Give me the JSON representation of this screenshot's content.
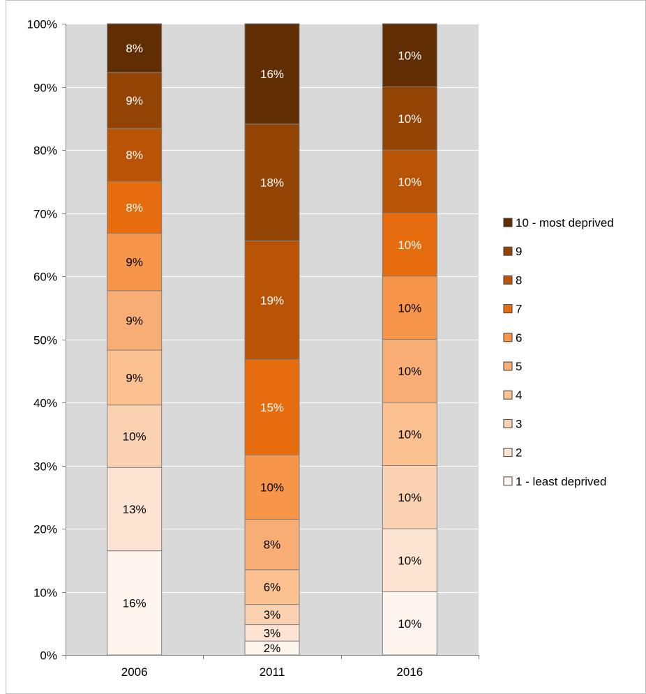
{
  "chart_data": {
    "type": "bar",
    "stacked": true,
    "percent_stacked": true,
    "title": "",
    "xlabel": "",
    "ylabel": "",
    "categories": [
      "2006",
      "2011",
      "2016"
    ],
    "ylim": [
      0,
      100
    ],
    "y_ticks": [
      "0%",
      "10%",
      "20%",
      "30%",
      "40%",
      "50%",
      "60%",
      "70%",
      "80%",
      "90%",
      "100%"
    ],
    "grid": true,
    "legend_position": "right",
    "series": [
      {
        "name": "1 - least deprived",
        "color": "#fef5ee",
        "label_color": "#000000",
        "values": [
          16.5,
          2.2,
          10
        ],
        "labels": [
          "16%",
          "2%",
          "10%"
        ]
      },
      {
        "name": "2",
        "color": "#fde3d1",
        "label_color": "#000000",
        "values": [
          13.2,
          2.6,
          10
        ],
        "labels": [
          "13%",
          "3%",
          "10%"
        ]
      },
      {
        "name": "3",
        "color": "#fbd2b1",
        "label_color": "#000000",
        "values": [
          9.9,
          3.2,
          10
        ],
        "labels": [
          "10%",
          "3%",
          "10%"
        ]
      },
      {
        "name": "4",
        "color": "#fbc190",
        "label_color": "#000000",
        "values": [
          8.7,
          5.5,
          10
        ],
        "labels": [
          "9%",
          "6%",
          "10%"
        ]
      },
      {
        "name": "5",
        "color": "#f8ad75",
        "label_color": "#000000",
        "values": [
          9.4,
          8.0,
          10
        ],
        "labels": [
          "9%",
          "8%",
          "10%"
        ]
      },
      {
        "name": "6",
        "color": "#f7964a",
        "label_color": "#000000",
        "values": [
          9.1,
          10.2,
          10
        ],
        "labels": [
          "9%",
          "10%",
          "10%"
        ]
      },
      {
        "name": "7",
        "color": "#e66c0e",
        "label_color": "#ffffff",
        "values": [
          8.2,
          15.1,
          10
        ],
        "labels": [
          "8%",
          "15%",
          "10%"
        ]
      },
      {
        "name": "8",
        "color": "#b95406",
        "label_color": "#ffffff",
        "values": [
          8.4,
          18.8,
          10
        ],
        "labels": [
          "8%",
          "19%",
          "10%"
        ]
      },
      {
        "name": "9",
        "color": "#934405",
        "label_color": "#ffffff",
        "values": [
          8.9,
          18.5,
          10
        ],
        "labels": [
          "9%",
          "18%",
          "10%"
        ]
      },
      {
        "name": "10 - most deprived",
        "color": "#612d03",
        "label_color": "#ffffff",
        "values": [
          7.7,
          15.9,
          10
        ],
        "labels": [
          "8%",
          "16%",
          "10%"
        ]
      }
    ]
  }
}
